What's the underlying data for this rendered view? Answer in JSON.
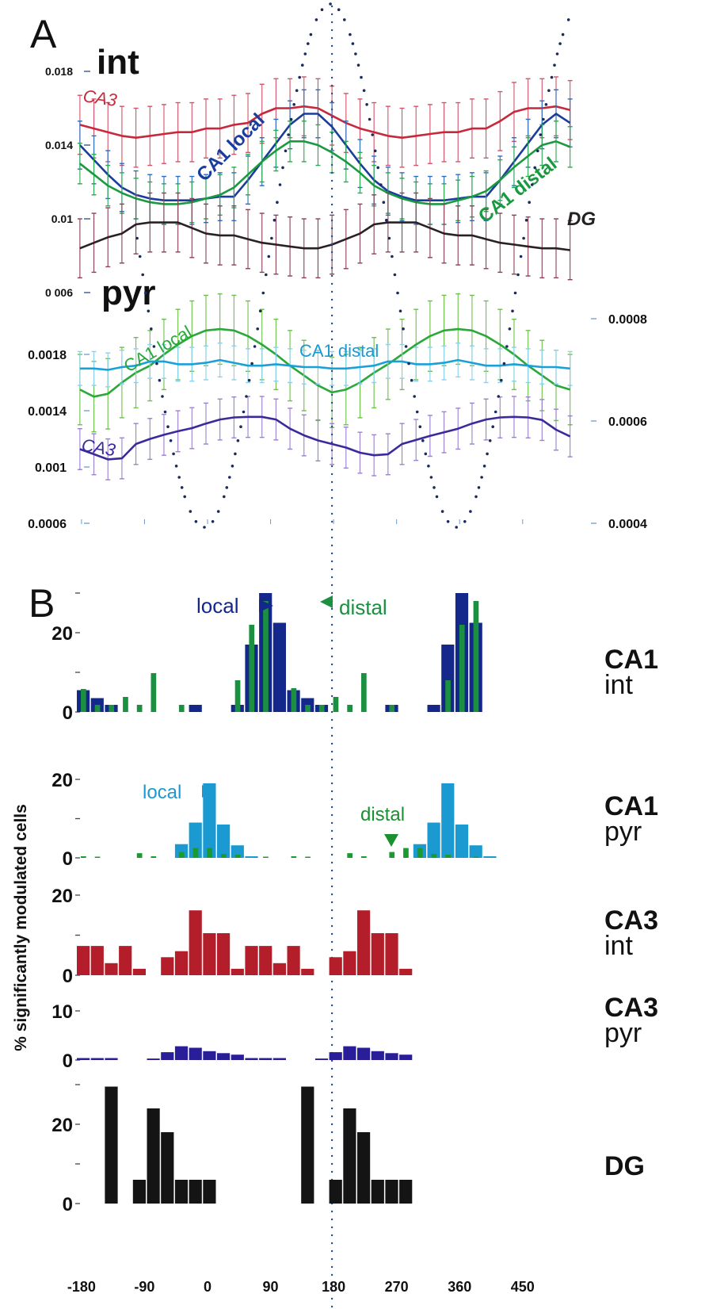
{
  "chart_data": [
    {
      "id": "A_int",
      "type": "line",
      "panel_letter": "A",
      "label": "int",
      "x": [
        -180,
        -160,
        -140,
        -120,
        -100,
        -80,
        -60,
        -40,
        -20,
        0,
        20,
        40,
        60,
        80,
        100,
        120,
        140,
        160,
        180,
        200,
        220,
        240,
        260,
        280,
        300,
        320,
        340,
        360,
        380,
        400,
        420,
        440,
        460,
        480,
        500,
        520
      ],
      "ylim": [
        0.006,
        0.018
      ],
      "yticks": [
        "0.018",
        "0.014",
        "0.01",
        "0 006"
      ],
      "ytick_values": [
        0.018,
        0.014,
        0.01,
        0.006
      ],
      "series": [
        {
          "name": "CA3",
          "label": "CA3",
          "color": "#c8283c",
          "errcolor": "#d2536a",
          "err": 0.0016,
          "values": [
            0.0151,
            0.0149,
            0.0147,
            0.0145,
            0.0144,
            0.0145,
            0.0146,
            0.0147,
            0.0147,
            0.0149,
            0.0149,
            0.0151,
            0.0152,
            0.0157,
            0.016,
            0.016,
            0.0161,
            0.016,
            0.0156,
            0.0152,
            0.0149,
            0.0147,
            0.0145,
            0.0144,
            0.0145,
            0.0146,
            0.0147,
            0.0147,
            0.0149,
            0.0149,
            0.0153,
            0.0158,
            0.016,
            0.016,
            0.0161,
            0.0159
          ]
        },
        {
          "name": "CA1 local",
          "label": "CA1 local",
          "color": "#1a3c9c",
          "errcolor": "#2a6cc0",
          "err": 0.0013,
          "values": [
            0.014,
            0.0132,
            0.0124,
            0.0117,
            0.0113,
            0.0111,
            0.011,
            0.011,
            0.011,
            0.0111,
            0.0112,
            0.0112,
            0.0121,
            0.0131,
            0.0141,
            0.0151,
            0.0157,
            0.0157,
            0.015,
            0.014,
            0.013,
            0.0121,
            0.0115,
            0.0112,
            0.011,
            0.011,
            0.011,
            0.0111,
            0.0112,
            0.0112,
            0.0121,
            0.0131,
            0.0141,
            0.0151,
            0.0157,
            0.0152
          ]
        },
        {
          "name": "CA1 distal",
          "label": "CA1 distal",
          "color": "#1a9a40",
          "errcolor": "#2aa850",
          "err": 0.0011,
          "values": [
            0.013,
            0.0124,
            0.0118,
            0.0114,
            0.0111,
            0.0109,
            0.0108,
            0.0108,
            0.0109,
            0.0111,
            0.0113,
            0.0117,
            0.0124,
            0.0131,
            0.0137,
            0.0142,
            0.0142,
            0.014,
            0.0136,
            0.0131,
            0.0125,
            0.0118,
            0.0114,
            0.0111,
            0.0109,
            0.0108,
            0.0108,
            0.011,
            0.0112,
            0.0115,
            0.0121,
            0.0128,
            0.0134,
            0.014,
            0.0142,
            0.0139
          ]
        },
        {
          "name": "DG",
          "label": "DG",
          "color": "#2a2028",
          "errcolor": "#8a4058",
          "err": 0.0016,
          "values": [
            0.0084,
            0.0087,
            0.009,
            0.0092,
            0.0097,
            0.0098,
            0.0098,
            0.0098,
            0.0095,
            0.0092,
            0.0091,
            0.0091,
            0.0089,
            0.0087,
            0.0086,
            0.0085,
            0.0084,
            0.0084,
            0.0086,
            0.0089,
            0.0092,
            0.0097,
            0.0098,
            0.0098,
            0.0098,
            0.0095,
            0.0092,
            0.0091,
            0.0091,
            0.0089,
            0.0087,
            0.0086,
            0.0085,
            0.0084,
            0.0084,
            0.0083
          ]
        }
      ]
    },
    {
      "id": "A_pyr",
      "type": "line",
      "label": "pyr",
      "x": [
        -180,
        -160,
        -140,
        -120,
        -100,
        -80,
        -60,
        -40,
        -20,
        0,
        20,
        40,
        60,
        80,
        100,
        120,
        140,
        160,
        180,
        200,
        220,
        240,
        260,
        280,
        300,
        320,
        340,
        360,
        380,
        400,
        420,
        440,
        460,
        480,
        500,
        520
      ],
      "ylim_left": [
        0.0006,
        0.0021
      ],
      "yticks_left": [
        "0.0018",
        "0.0014",
        "0.001",
        "0.0006"
      ],
      "ytick_values_left": [
        0.0018,
        0.0014,
        0.001,
        0.0006
      ],
      "ylim_right": [
        0.0004,
        0.00087
      ],
      "yticks_right": [
        "0.0008",
        "0.0006",
        "0.0004"
      ],
      "ytick_values_right": [
        0.0008,
        0.0006,
        0.0004
      ],
      "series": [
        {
          "name": "CA1 local",
          "label": "CA1 local",
          "axis": "left",
          "color": "#2aa83a",
          "errcolor": "#6cc04a",
          "err": 0.00025,
          "values": [
            0.00155,
            0.0015,
            0.00152,
            0.0016,
            0.00167,
            0.00172,
            0.0018,
            0.00187,
            0.00193,
            0.00197,
            0.00198,
            0.00197,
            0.00193,
            0.00187,
            0.0018,
            0.00172,
            0.00165,
            0.00158,
            0.00153,
            0.00155,
            0.0016,
            0.00167,
            0.00173,
            0.0018,
            0.00187,
            0.00193,
            0.00197,
            0.00198,
            0.00197,
            0.00193,
            0.00187,
            0.0018,
            0.00172,
            0.00165,
            0.00158,
            0.00155
          ]
        },
        {
          "name": "CA1 distal",
          "label": "CA1 distal",
          "axis": "left",
          "color": "#1aa0d8",
          "errcolor": "#8ad0ee",
          "err": 0.00012,
          "values": [
            0.0017,
            0.0017,
            0.00169,
            0.00171,
            0.00172,
            0.00175,
            0.00175,
            0.00173,
            0.00173,
            0.00174,
            0.00176,
            0.00174,
            0.00172,
            0.00172,
            0.00173,
            0.00172,
            0.00171,
            0.00171,
            0.0017,
            0.0017,
            0.00171,
            0.00172,
            0.00175,
            0.00175,
            0.00173,
            0.00173,
            0.00174,
            0.00176,
            0.00174,
            0.00172,
            0.00172,
            0.00173,
            0.00172,
            0.00171,
            0.00171,
            0.0017
          ]
        },
        {
          "name": "CA3",
          "label": "CA3",
          "axis": "right",
          "color": "#3a2a9a",
          "errcolor": "#9a80d0",
          "err": 4e-05,
          "values": [
            0.000545,
            0.000535,
            0.000525,
            0.000527,
            0.000555,
            0.000565,
            0.000573,
            0.00058,
            0.000586,
            0.000595,
            0.000603,
            0.000607,
            0.000608,
            0.000608,
            0.000603,
            0.000585,
            0.000572,
            0.000562,
            0.000555,
            0.000548,
            0.000538,
            0.000533,
            0.000535,
            0.000555,
            0.000563,
            0.000571,
            0.000578,
            0.000585,
            0.000595,
            0.000603,
            0.000607,
            0.000608,
            0.000607,
            0.000602,
            0.000583,
            0.00057
          ]
        }
      ]
    },
    {
      "id": "reference_wave",
      "type": "line",
      "description": "dotted reference cosine (phase), peak at 180 deg, troughs at 0 and 360 deg",
      "x_peak_deg": [
        180
      ],
      "x_trough_deg": [
        0,
        360
      ],
      "color": "#1a2a5a"
    },
    {
      "id": "B_CA1_int",
      "type": "bar",
      "panel_letter": "B",
      "label_line1": "CA1",
      "label_line2": "int",
      "ylim": [
        0,
        30
      ],
      "yticks": [
        "20",
        "0"
      ],
      "ytick_values": [
        20,
        0
      ],
      "minor_tick_values": [
        10,
        30
      ],
      "bin_start_deg": [
        -180,
        -160,
        -140,
        -120,
        -100,
        -80,
        -60,
        -40,
        -20,
        0,
        20,
        40,
        60,
        80,
        100,
        120,
        140,
        160,
        180,
        200,
        220,
        240,
        260,
        280,
        300,
        320,
        340,
        360,
        380,
        400,
        420,
        440,
        460,
        480,
        500,
        520
      ],
      "series": [
        {
          "name": "local",
          "color": "#14288c",
          "values": [
            5.5,
            3.5,
            1.8,
            0,
            0,
            0,
            0,
            0,
            1.8,
            0,
            0,
            1.8,
            17,
            30,
            22.5,
            5.5,
            3.5,
            1.8,
            0,
            0,
            0,
            0,
            1.8,
            0,
            0,
            1.8,
            17,
            30,
            22.5,
            0,
            0,
            0,
            0,
            0,
            0,
            0
          ]
        },
        {
          "name": "distal",
          "color": "#1a9040",
          "values": [
            5.8,
            1.8,
            1.8,
            3.8,
            1.8,
            9.8,
            0,
            1.8,
            0,
            0,
            0,
            8,
            22,
            28,
            0,
            6,
            1.8,
            1.8,
            3.8,
            1.8,
            9.8,
            0,
            1.8,
            0,
            0,
            0,
            8,
            22,
            28,
            0,
            0,
            0,
            0,
            0,
            0,
            0
          ]
        }
      ],
      "annotations": [
        {
          "text": "local",
          "color": "#14288c",
          "arrow": "right"
        },
        {
          "text": "distal",
          "color": "#1a9040",
          "arrow": "left"
        }
      ]
    },
    {
      "id": "B_CA1_pyr",
      "type": "bar",
      "label_line1": "CA1",
      "label_line2": "pyr",
      "ylim": [
        0,
        22
      ],
      "yticks": [
        "20",
        "0"
      ],
      "ytick_values": [
        20,
        0
      ],
      "minor_tick_values": [
        10
      ],
      "series": [
        {
          "name": "local",
          "color": "#1a9ad0",
          "values": [
            0,
            0,
            0,
            0,
            0,
            0,
            0,
            3.5,
            9,
            19,
            8.5,
            3.2,
            0.4,
            0,
            0,
            0,
            0,
            0,
            0,
            0,
            0,
            0,
            0,
            0,
            3.5,
            9,
            19,
            8.5,
            3.2,
            0.4,
            0,
            0,
            0,
            0,
            0,
            0
          ]
        },
        {
          "name": "distal",
          "color": "#1a9a30",
          "values": [
            0.4,
            0.3,
            0,
            0,
            1.2,
            0.4,
            0,
            1.5,
            2.5,
            2.5,
            1,
            0.8,
            0,
            0.3,
            0,
            0.4,
            0.3,
            0,
            0,
            1.2,
            0.4,
            0,
            1.5,
            2.5,
            2.5,
            1,
            0.8,
            0,
            0.3,
            0,
            0,
            0,
            0,
            0,
            0,
            0
          ]
        }
      ],
      "annotations": [
        {
          "text": "local",
          "color": "#1a9ad0",
          "arrow": "right"
        },
        {
          "text": "distal",
          "color": "#1a9030",
          "arrow": "down"
        }
      ]
    },
    {
      "id": "B_CA3_int",
      "type": "bar",
      "label_line1": "CA3",
      "label_line2": "int",
      "ylim": [
        0,
        20
      ],
      "yticks": [
        "20",
        "0"
      ],
      "ytick_values": [
        20,
        0
      ],
      "minor_tick_values": [
        10
      ],
      "series": [
        {
          "name": "CA3 int",
          "color": "#b41e2a",
          "values": [
            7.3,
            7.3,
            3,
            7.3,
            1.6,
            0,
            4.5,
            6,
            16.2,
            10.5,
            10.5,
            1.6,
            7.3,
            7.3,
            3,
            7.3,
            1.6,
            0,
            4.5,
            6,
            16.2,
            10.5,
            10.5,
            1.6,
            0,
            0,
            0,
            0,
            0,
            0,
            0,
            0,
            0,
            0,
            0,
            0
          ]
        }
      ]
    },
    {
      "id": "B_CA3_pyr",
      "type": "bar",
      "label_line1": "CA3",
      "label_line2": "pyr",
      "ylim": [
        0,
        10
      ],
      "yticks": [
        "10",
        "0"
      ],
      "ytick_values": [
        10,
        0
      ],
      "series": [
        {
          "name": "CA3 pyr",
          "color": "#2a1e98",
          "values": [
            0.4,
            0.4,
            0.4,
            0,
            0,
            0.3,
            1.6,
            2.8,
            2.5,
            1.8,
            1.4,
            1.1,
            0.4,
            0.4,
            0.4,
            0,
            0,
            0.3,
            1.6,
            2.8,
            2.5,
            1.8,
            1.4,
            1.1,
            0,
            0,
            0,
            0,
            0,
            0,
            0,
            0,
            0,
            0,
            0,
            0
          ]
        }
      ]
    },
    {
      "id": "B_DG",
      "type": "bar",
      "label_line1": "DG",
      "label_line2": "",
      "ylim": [
        0,
        30
      ],
      "yticks": [
        "20",
        "0"
      ],
      "ytick_values": [
        20,
        0
      ],
      "minor_tick_values": [
        10,
        30
      ],
      "xlabel_ticks": [
        "-180",
        "-90",
        "0",
        "90",
        "180",
        "270",
        "360",
        "450"
      ],
      "xtick_values": [
        -180,
        -90,
        0,
        90,
        180,
        270,
        360,
        450
      ],
      "series": [
        {
          "name": "DG",
          "color": "#141414",
          "values": [
            0,
            0,
            29.5,
            0,
            6,
            24,
            18,
            6,
            6,
            6,
            0,
            0,
            0,
            0,
            0,
            0,
            29.5,
            0,
            6,
            24,
            18,
            6,
            6,
            6,
            0,
            0,
            0,
            0,
            0,
            0,
            0,
            0,
            0,
            0,
            0,
            0
          ]
        }
      ]
    }
  ],
  "labels": {
    "panel_a": "A",
    "panel_b": "B",
    "int_title": "int",
    "pyr_title": "pyr",
    "int_ca3": "CA3",
    "int_ca1_local": "CA1 local",
    "int_ca1_distal": "CA1 distal",
    "int_dg": "DG",
    "pyr_ca1_local": "CA1 local",
    "pyr_ca1_distal": "CA1 distal",
    "pyr_ca3": "CA3",
    "ylabel_b": "% significantly modulated cells",
    "b1_local": "local",
    "b1_distal": "distal",
    "b2_local": "local",
    "b2_distal": "distal"
  }
}
